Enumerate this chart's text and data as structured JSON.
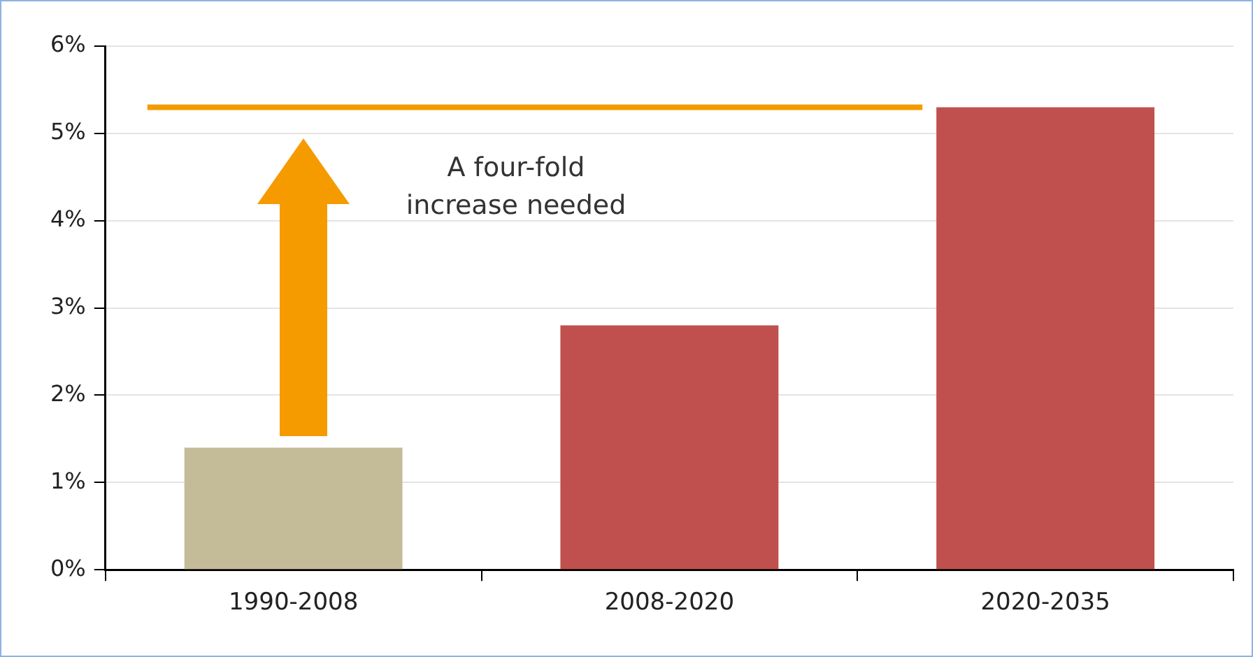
{
  "chart_data": {
    "type": "bar",
    "categories": [
      "1990-2008",
      "2008-2020",
      "2020-2035"
    ],
    "values": [
      1.4,
      2.8,
      5.3
    ],
    "colors": [
      "#c4bc98",
      "#c0504d",
      "#c0504d"
    ],
    "ylim": [
      0,
      6
    ],
    "yticks": [
      {
        "value": 0,
        "label": "0%"
      },
      {
        "value": 1,
        "label": "1%"
      },
      {
        "value": 2,
        "label": "2%"
      },
      {
        "value": 3,
        "label": "3%"
      },
      {
        "value": 4,
        "label": "4%"
      },
      {
        "value": 5,
        "label": "5%"
      },
      {
        "value": 6,
        "label": "6%"
      }
    ],
    "grid": "y",
    "legend": false,
    "ref_lines": [
      {
        "axis": "y",
        "value": 5.3,
        "color": "#f59b00"
      }
    ],
    "annotations": [
      "A four-fold increase needed"
    ]
  }
}
